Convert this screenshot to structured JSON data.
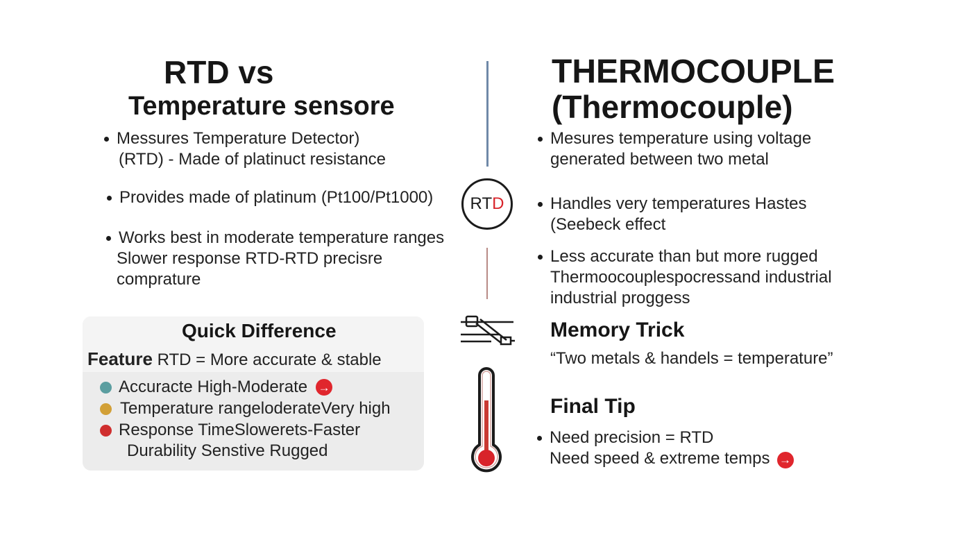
{
  "left": {
    "title_line1": "RTD vs",
    "title_line2": "Temperature sensore",
    "bullets": [
      {
        "lines": [
          "Messures Temperature Detector)",
          "(RTD) - Made of platinuct resistance"
        ]
      },
      {
        "lines": [
          "Provides made of platinum (Pt100/Pt1000)"
        ]
      },
      {
        "lines": [
          "Works best in moderate temperature ranges",
          "Slower response RTD-RTD precisre",
          "comprature"
        ]
      }
    ]
  },
  "right": {
    "title_line1": "THERMOCOUPLE",
    "title_line2": "(Thermocouple)",
    "bullets": [
      {
        "lines": [
          "Mesures temperature using  voltage",
          "generated between two metal"
        ]
      },
      {
        "lines": [
          "Handles very temperatures Hastes",
          "(Seebeck effect"
        ]
      },
      {
        "lines": [
          "Less accurate than but more rugged",
          "Thermoocouplespocressand industrial",
          "industrial proggess"
        ]
      }
    ]
  },
  "center": {
    "badge_text_main": "RT",
    "badge_text_accent": "D",
    "divider_colors": {
      "top": "#6f89a8",
      "bottom": "#b88a86"
    }
  },
  "quick_difference": {
    "title": "Quick Difference",
    "feature_label": "Feature",
    "feature_text": "RTD = More accurate & stable",
    "rows": [
      {
        "text": "Accuracte High-Moderate",
        "dot_color": "#5b9ea0",
        "arrow": "→"
      },
      {
        "text": "Temperature rangeloderateVery high",
        "dot_color": "#d2a037",
        "arrow": ""
      },
      {
        "text": "Response TimeSlowerets-Faster",
        "dot_color": "#cf2e2e",
        "arrow": ""
      },
      {
        "text": "Durability Senstive Rugged",
        "dot_color": "",
        "arrow": ""
      }
    ]
  },
  "memory_trick": {
    "title": "Memory Trick",
    "text": "“Two metals & handels = temperature”"
  },
  "final_tip": {
    "title": "Final Tip",
    "line1": "Need precision = RTD",
    "line2": "Need speed & extreme temps",
    "arrow": "→"
  },
  "icons": {
    "center_badge": "rtd-badge-icon",
    "probe": "sensor-probe-icon",
    "thermometer": "thermometer-icon",
    "arrow": "arrow-right-circle-icon"
  },
  "colors": {
    "accent_red": "#e0262d",
    "box_bg": "#ececec"
  }
}
